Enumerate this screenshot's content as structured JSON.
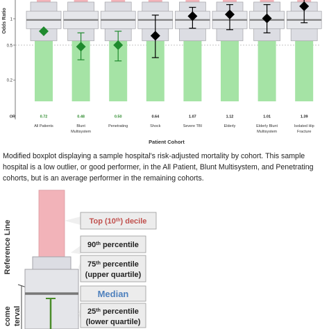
{
  "chart_data": {
    "type": "boxplot",
    "ylabel": "Odds Ratio",
    "xlabel": "Patient Cohort",
    "scale": "log",
    "yticks": [
      "1",
      "0.5",
      "0.2"
    ],
    "reference_line": 0.5,
    "or_row_label": "OR",
    "categories": [
      "All Patients",
      "Blunt\nMultisystem",
      "Penetrating",
      "Shock",
      "Severe TBI",
      "Elderly",
      "Elderly Blunt\nMultisystem",
      "Isolated Hip\nFracture"
    ],
    "or_values": [
      "0.72",
      "0.48",
      "0.50",
      "0.64",
      "1.07",
      "1.12",
      "1.01",
      "1.39"
    ],
    "or_colors": [
      "#2e8b2e",
      "#2e8b2e",
      "#2e8b2e",
      "#222222",
      "#222222",
      "#222222",
      "#222222",
      "#222222"
    ],
    "point_estimates": [
      0.72,
      0.48,
      0.5,
      0.64,
      1.07,
      1.12,
      1.01,
      1.39
    ],
    "ci": [
      [
        null,
        null
      ],
      [
        0.34,
        0.69
      ],
      [
        0.33,
        0.72
      ],
      [
        0.36,
        1.1
      ],
      [
        0.78,
        1.35
      ],
      [
        0.75,
        1.45
      ],
      [
        0.69,
        1.45
      ],
      [
        0.9,
        1.9
      ]
    ],
    "low_outlier": [
      true,
      true,
      true,
      false,
      false,
      false,
      false,
      false
    ],
    "box": {
      "p10": 0.56,
      "p25": 0.77,
      "median": 0.97,
      "p75": 1.22,
      "p90": 1.55
    },
    "colors": {
      "outlier": "#1f8a2e",
      "normal": "#000000",
      "box": "#dcdde3",
      "box_stroke": "#a3a3a8",
      "top_decile": "#f2b3b9",
      "low_zone": "#a5e3a5"
    }
  },
  "caption": "Modified boxplot displaying a sample hospital's risk-adjusted mortality by cohort. This sample hospital is a low outlier, or good performer, in the All Patient, Blunt Multisystem, and Penetrating cohorts, but is an average performer in the remaining cohorts.",
  "legend": {
    "side_label_reference": "Reference Line",
    "side_label_outcome": "come\nterval",
    "top_decile": {
      "pre": "Top (10",
      "sup": "th",
      "post": ") decile"
    },
    "p90": {
      "pre": "90",
      "sup": "th",
      "post": " percentile"
    },
    "p75": {
      "pre": "75",
      "sup": "th",
      "post": " percentile",
      "line2": "(upper quartile)"
    },
    "median": "Median",
    "p25": {
      "pre": "25",
      "sup": "th",
      "post": " percentile",
      "line2": "(lower quartile)"
    }
  }
}
